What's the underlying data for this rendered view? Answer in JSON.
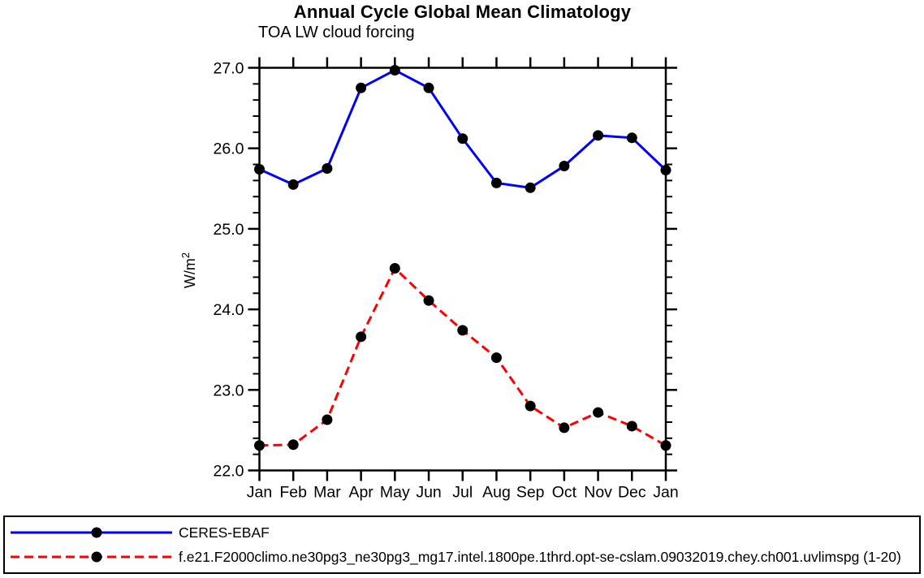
{
  "header": {
    "title": "Annual Cycle Global Mean Climatology",
    "subtitle": "TOA LW cloud forcing"
  },
  "chart_data": {
    "type": "line",
    "title": "Annual Cycle Global Mean Climatology",
    "subtitle": "TOA LW cloud forcing",
    "ylabel": "W/m²",
    "xlabel": "",
    "grid": false,
    "legend_position": "bottom-box",
    "categories": [
      "Jan",
      "Feb",
      "Mar",
      "Apr",
      "May",
      "Jun",
      "Jul",
      "Aug",
      "Sep",
      "Oct",
      "Nov",
      "Dec",
      "Jan"
    ],
    "ylim": [
      22.0,
      27.0
    ],
    "ytick_major": [
      22.0,
      23.0,
      24.0,
      25.0,
      26.0,
      27.0
    ],
    "ytick_labels": [
      "22.0",
      "23.0",
      "24.0",
      "25.0",
      "26.0",
      "27.0"
    ],
    "ytick_minor_step": 0.2,
    "series": [
      {
        "name": "CERES-EBAF",
        "color": "#0000ff",
        "style": "solid",
        "marker": "circle",
        "marker_color": "#000000",
        "values": [
          25.74,
          25.55,
          25.75,
          26.75,
          26.97,
          26.75,
          26.12,
          25.57,
          25.51,
          25.78,
          26.16,
          26.13,
          25.73
        ]
      },
      {
        "name": "f.e21.F2000climo.ne30pg3_ne30pg3_mg17.intel.1800pe.1thrd.opt-se-cslam.09032019.chey.ch001.uvlimspg (1-20)",
        "color": "#ff0000",
        "style": "dashed",
        "marker": "circle",
        "marker_color": "#000000",
        "values": [
          22.31,
          22.32,
          22.63,
          23.66,
          24.51,
          24.11,
          23.74,
          23.4,
          22.8,
          22.53,
          22.72,
          22.55,
          22.31
        ]
      }
    ]
  }
}
